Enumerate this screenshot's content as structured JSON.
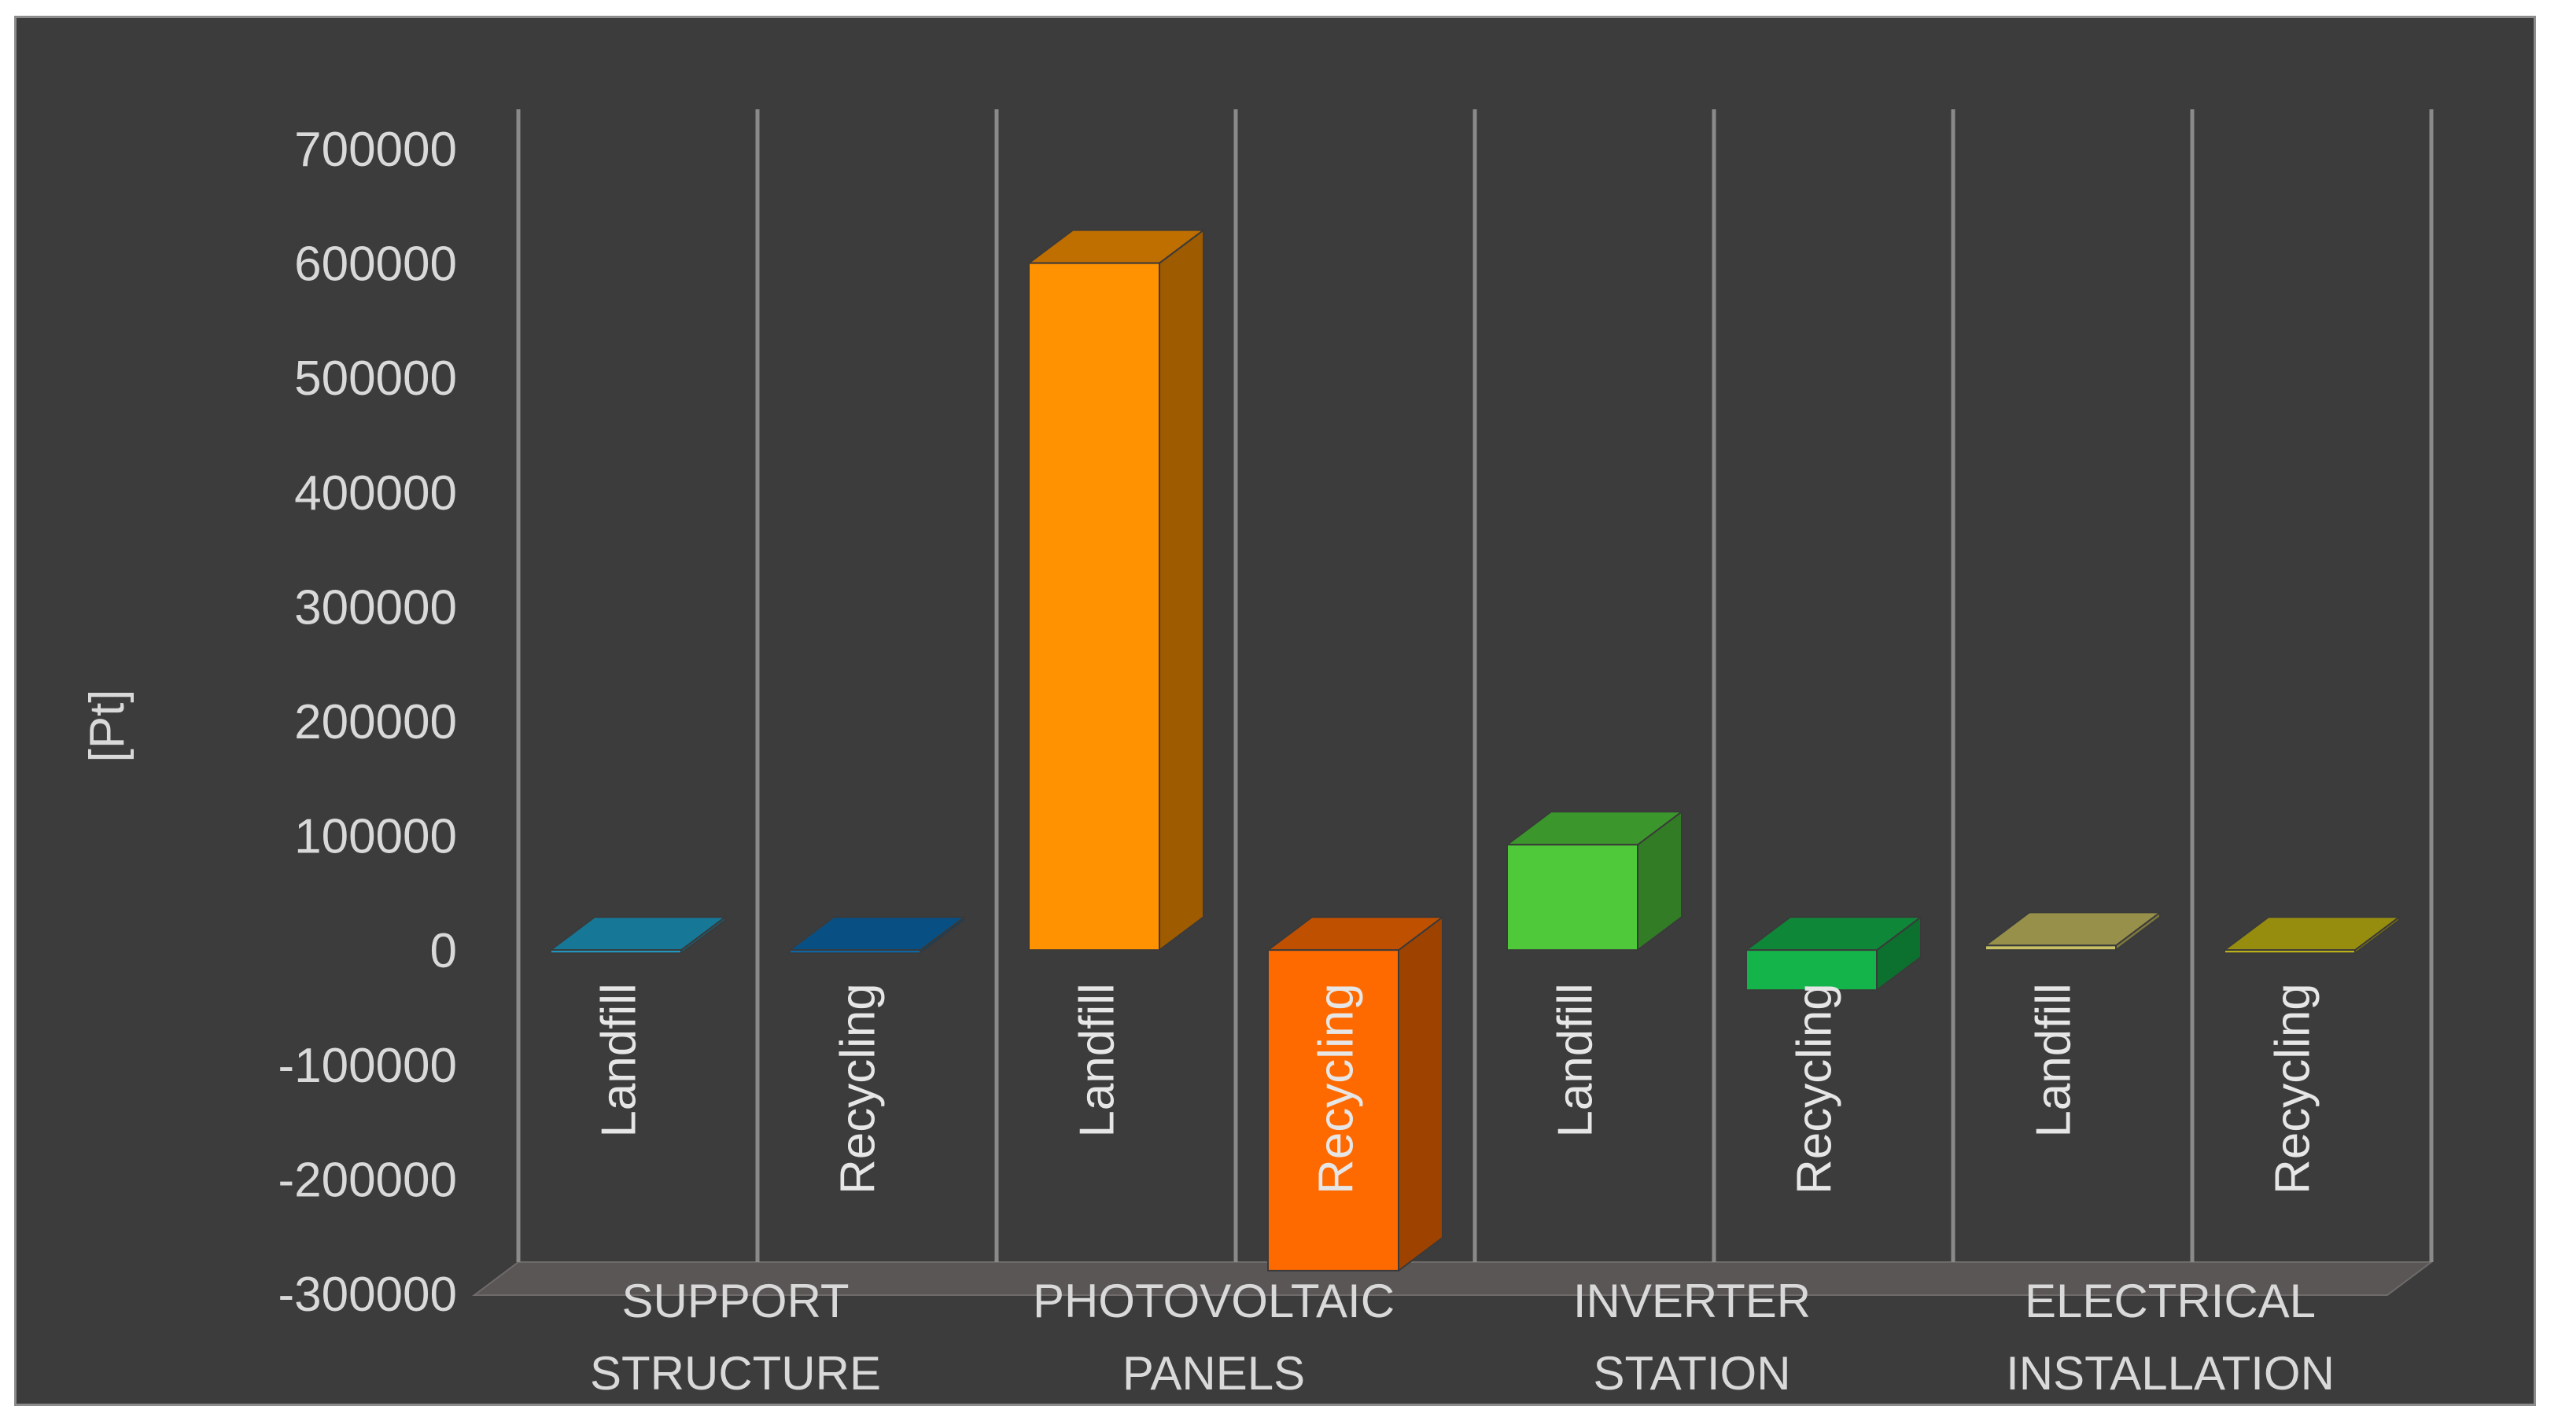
{
  "chart_data": {
    "type": "bar",
    "style": "3d-column",
    "ylabel": "[Pt]",
    "ylim": [
      -300000,
      700000
    ],
    "yticks": [
      700000,
      600000,
      500000,
      400000,
      300000,
      200000,
      100000,
      0,
      -100000,
      -200000,
      -300000
    ],
    "tick_labels": [
      "700000",
      "600000",
      "500000",
      "400000",
      "300000",
      "200000",
      "100000",
      "0",
      "-100000",
      "-200000",
      "-300000"
    ],
    "grid": false,
    "background": "#3c3c3c",
    "groups": [
      {
        "name_lines": [
          "SUPPORT",
          "STRUCTURE"
        ]
      },
      {
        "name_lines": [
          "PHOTOVOLTAIC",
          "PANELS"
        ]
      },
      {
        "name_lines": [
          "INVERTER",
          "STATION"
        ]
      },
      {
        "name_lines": [
          "ELECTRICAL",
          "INSTALLATION"
        ]
      }
    ],
    "bars": [
      {
        "group": 0,
        "label": "Landfill",
        "value": 0,
        "color": "#1e9fc8"
      },
      {
        "group": 0,
        "label": "Recycling",
        "value": 0,
        "color": "#0a6bb0"
      },
      {
        "group": 1,
        "label": "Landfill",
        "value": 600000,
        "color": "#ff9200"
      },
      {
        "group": 1,
        "label": "Recycling",
        "value": -280000,
        "color": "#ff6a00"
      },
      {
        "group": 2,
        "label": "Landfill",
        "value": 92000,
        "color": "#4fc83a"
      },
      {
        "group": 2,
        "label": "Recycling",
        "value": -35000,
        "color": "#14b44a"
      },
      {
        "group": 3,
        "label": "Landfill",
        "value": 4000,
        "color": "#c8c064"
      },
      {
        "group": 3,
        "label": "Recycling",
        "value": 0,
        "color": "#c8bc14"
      }
    ]
  }
}
